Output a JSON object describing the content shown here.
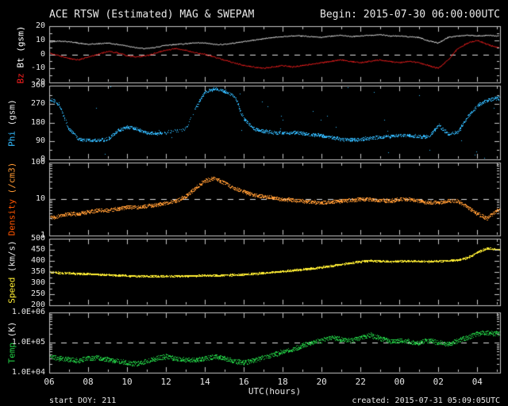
{
  "header": {
    "title": "ACE RTSW (Estimated) MAG & SWEPAM",
    "begin": "Begin: 2015-07-30 06:00:00UTC"
  },
  "footer": {
    "start_doy": "start DOY: 211",
    "created": "created: 2015-07-31 05:09:05UTC"
  },
  "colors": {
    "background": "#000000",
    "frame": "#c8c8c8",
    "dash": "#e0e0e0",
    "text": "#e8e8e8"
  },
  "chart_data": {
    "type": "scatter",
    "title": "ACE RTSW (Estimated) MAG & SWEPAM",
    "x_label": "UTC(hours)",
    "x_range": [
      6,
      29.17
    ],
    "x_ticks": [
      {
        "value": 6,
        "label": "06"
      },
      {
        "value": 8,
        "label": "08"
      },
      {
        "value": 10,
        "label": "10"
      },
      {
        "value": 12,
        "label": "12"
      },
      {
        "value": 14,
        "label": "14"
      },
      {
        "value": 16,
        "label": "16"
      },
      {
        "value": 18,
        "label": "18"
      },
      {
        "value": 20,
        "label": "20"
      },
      {
        "value": 22,
        "label": "22"
      },
      {
        "value": 24,
        "label": "00"
      },
      {
        "value": 26,
        "label": "02"
      },
      {
        "value": 28,
        "label": "04"
      }
    ],
    "anchor_hours": [
      6,
      6.5,
      7,
      7.5,
      8,
      8.5,
      9,
      9.5,
      10,
      10.5,
      11,
      11.5,
      12,
      12.5,
      13,
      13.5,
      14,
      14.5,
      15,
      15.5,
      16,
      16.5,
      17,
      17.5,
      18,
      18.5,
      19,
      19.5,
      20,
      20.5,
      21,
      21.5,
      22,
      22.5,
      23,
      23.5,
      24,
      24.5,
      25,
      25.5,
      26,
      26.5,
      27,
      27.5,
      28,
      28.5,
      29
    ],
    "panels": [
      {
        "name": "bt-bz",
        "ylabel_parts": [
          {
            "text": "Bz",
            "color": "#ff2020"
          },
          {
            "text": "Bt",
            "color": "#ffffff"
          },
          {
            "text": "(gsm)",
            "color": "#ffffff"
          }
        ],
        "scale": "linear",
        "y_range": [
          -20,
          20
        ],
        "y_minor_step": 5,
        "y_ticks": [
          {
            "value": 20,
            "label": "20"
          },
          {
            "value": 10,
            "label": "10"
          },
          {
            "value": 0,
            "label": "0"
          },
          {
            "value": -10,
            "label": "-10"
          },
          {
            "value": -20,
            "label": "-20"
          }
        ],
        "dashed_at": 0,
        "series": [
          {
            "name": "Bt",
            "color": "#ffffff",
            "style": "line",
            "values": [
              8.5,
              9.5,
              9,
              8,
              7,
              7.5,
              8,
              7,
              6,
              4.5,
              4,
              5,
              6.5,
              7,
              7.5,
              8,
              8,
              7,
              7,
              8,
              9,
              10,
              11,
              12,
              12.5,
              13,
              13,
              12.5,
              12,
              13,
              13.5,
              12.5,
              13,
              13.5,
              14,
              13,
              13,
              12.5,
              12,
              9.5,
              8,
              12,
              13,
              13.5,
              13,
              13.5,
              13
            ]
          },
          {
            "name": "Bz",
            "color": "#ff2020",
            "style": "line",
            "values": [
              1,
              -1,
              -3,
              -4,
              -2,
              0,
              2,
              1,
              -1,
              -2,
              -1,
              1,
              3,
              4,
              3,
              1,
              0,
              -2,
              -4,
              -6,
              -8,
              -9,
              -10,
              -9,
              -8,
              -9,
              -8,
              -7,
              -6,
              -5,
              -4,
              -5,
              -6,
              -5,
              -4,
              -5,
              -6,
              -5,
              -6,
              -8,
              -10,
              -4,
              4,
              8,
              10,
              7,
              5
            ]
          }
        ]
      },
      {
        "name": "phi",
        "ylabel_parts": [
          {
            "text": "Phi",
            "color": "#33bbff"
          },
          {
            "text": "(gsm)",
            "color": "#e8e8e8"
          }
        ],
        "scale": "linear",
        "y_range": [
          0,
          360
        ],
        "y_minor_step": 45,
        "y_ticks": [
          {
            "value": 360,
            "label": "360"
          },
          {
            "value": 270,
            "label": "270"
          },
          {
            "value": 180,
            "label": "180"
          },
          {
            "value": 90,
            "label": "90"
          },
          {
            "value": 0,
            "label": "0"
          }
        ],
        "dashed_at": null,
        "series": [
          {
            "name": "Phi",
            "color": "#33bbff",
            "style": "scatter",
            "values": [
              300,
              270,
              150,
              100,
              95,
              95,
              100,
              140,
              160,
              150,
              130,
              128,
              132,
              140,
              150,
              250,
              330,
              345,
              335,
              310,
              200,
              150,
              140,
              132,
              130,
              133,
              128,
              122,
              118,
              108,
              100,
              96,
              100,
              105,
              110,
              114,
              118,
              118,
              114,
              110,
              170,
              125,
              135,
              210,
              265,
              290,
              300
            ]
          }
        ]
      },
      {
        "name": "density",
        "ylabel_parts": [
          {
            "text": "Density",
            "color": "#ff5500"
          },
          {
            "text": "(/cm3)",
            "color": "#ff9933"
          }
        ],
        "scale": "log",
        "y_range": [
          1,
          100
        ],
        "y_ticks": [
          {
            "value": 100,
            "label": "100"
          },
          {
            "value": 10,
            "label": "10"
          },
          {
            "value": 1,
            "label": "1"
          }
        ],
        "dashed_at": 10,
        "series": [
          {
            "name": "Density",
            "color": "#ff9933",
            "style": "scatter",
            "values": [
              3,
              3.5,
              4,
              4,
              4.5,
              5,
              5,
              5.5,
              6,
              6,
              6.5,
              7,
              8,
              9,
              12,
              20,
              32,
              38,
              28,
              20,
              16,
              13,
              12,
              11,
              10,
              9.5,
              9,
              8.5,
              8,
              8.5,
              9,
              9.5,
              10,
              10,
              9.5,
              9,
              10,
              10,
              9,
              8,
              8,
              9,
              9,
              6,
              4,
              3,
              5
            ]
          }
        ]
      },
      {
        "name": "speed",
        "ylabel_parts": [
          {
            "text": "Speed",
            "color": "#ffee33"
          },
          {
            "text": "(km/s)",
            "color": "#e8e8e8"
          }
        ],
        "scale": "linear",
        "y_range": [
          200,
          500
        ],
        "y_minor_step": 25,
        "y_ticks": [
          {
            "value": 500,
            "label": "500"
          },
          {
            "value": 450,
            "label": "450"
          },
          {
            "value": 400,
            "label": "400"
          },
          {
            "value": 350,
            "label": "350"
          },
          {
            "value": 300,
            "label": "300"
          },
          {
            "value": 250,
            "label": "250"
          },
          {
            "value": 200,
            "label": "200"
          }
        ],
        "dashed_at": null,
        "series": [
          {
            "name": "Speed",
            "color": "#ffee33",
            "style": "scatter",
            "values": [
              350,
              348,
              346,
              344,
              342,
              340,
              338,
              336,
              334,
              333,
              332,
              331,
              331,
              332,
              333,
              334,
              335,
              336,
              337,
              338,
              340,
              343,
              346,
              350,
              354,
              358,
              362,
              367,
              372,
              378,
              385,
              392,
              398,
              402,
              400,
              398,
              400,
              401,
              399,
              398,
              400,
              402,
              405,
              415,
              440,
              458,
              452
            ]
          }
        ]
      },
      {
        "name": "temp",
        "ylabel_parts": [
          {
            "text": "Temp",
            "color": "#22cc44"
          },
          {
            "text": "(K)",
            "color": "#e8e8e8"
          }
        ],
        "scale": "log",
        "y_range": [
          10000,
          1000000
        ],
        "y_ticks": [
          {
            "value": 1000000,
            "label": "1.0E+06"
          },
          {
            "value": 100000,
            "label": "1.0E+05"
          },
          {
            "value": 10000,
            "label": "1.0E+04"
          }
        ],
        "dashed_at": 100000,
        "series": [
          {
            "name": "Temp",
            "color": "#22cc44",
            "style": "scatter",
            "values": [
              35000,
              30000,
              28000,
              25000,
              30000,
              32000,
              28000,
              25000,
              22000,
              20000,
              25000,
              30000,
              35000,
              30000,
              28000,
              26000,
              30000,
              35000,
              30000,
              25000,
              22000,
              26000,
              32000,
              40000,
              50000,
              60000,
              80000,
              100000,
              120000,
              150000,
              130000,
              120000,
              150000,
              180000,
              140000,
              110000,
              120000,
              110000,
              100000,
              120000,
              100000,
              90000,
              120000,
              150000,
              200000,
              220000,
              200000
            ]
          }
        ]
      }
    ]
  }
}
